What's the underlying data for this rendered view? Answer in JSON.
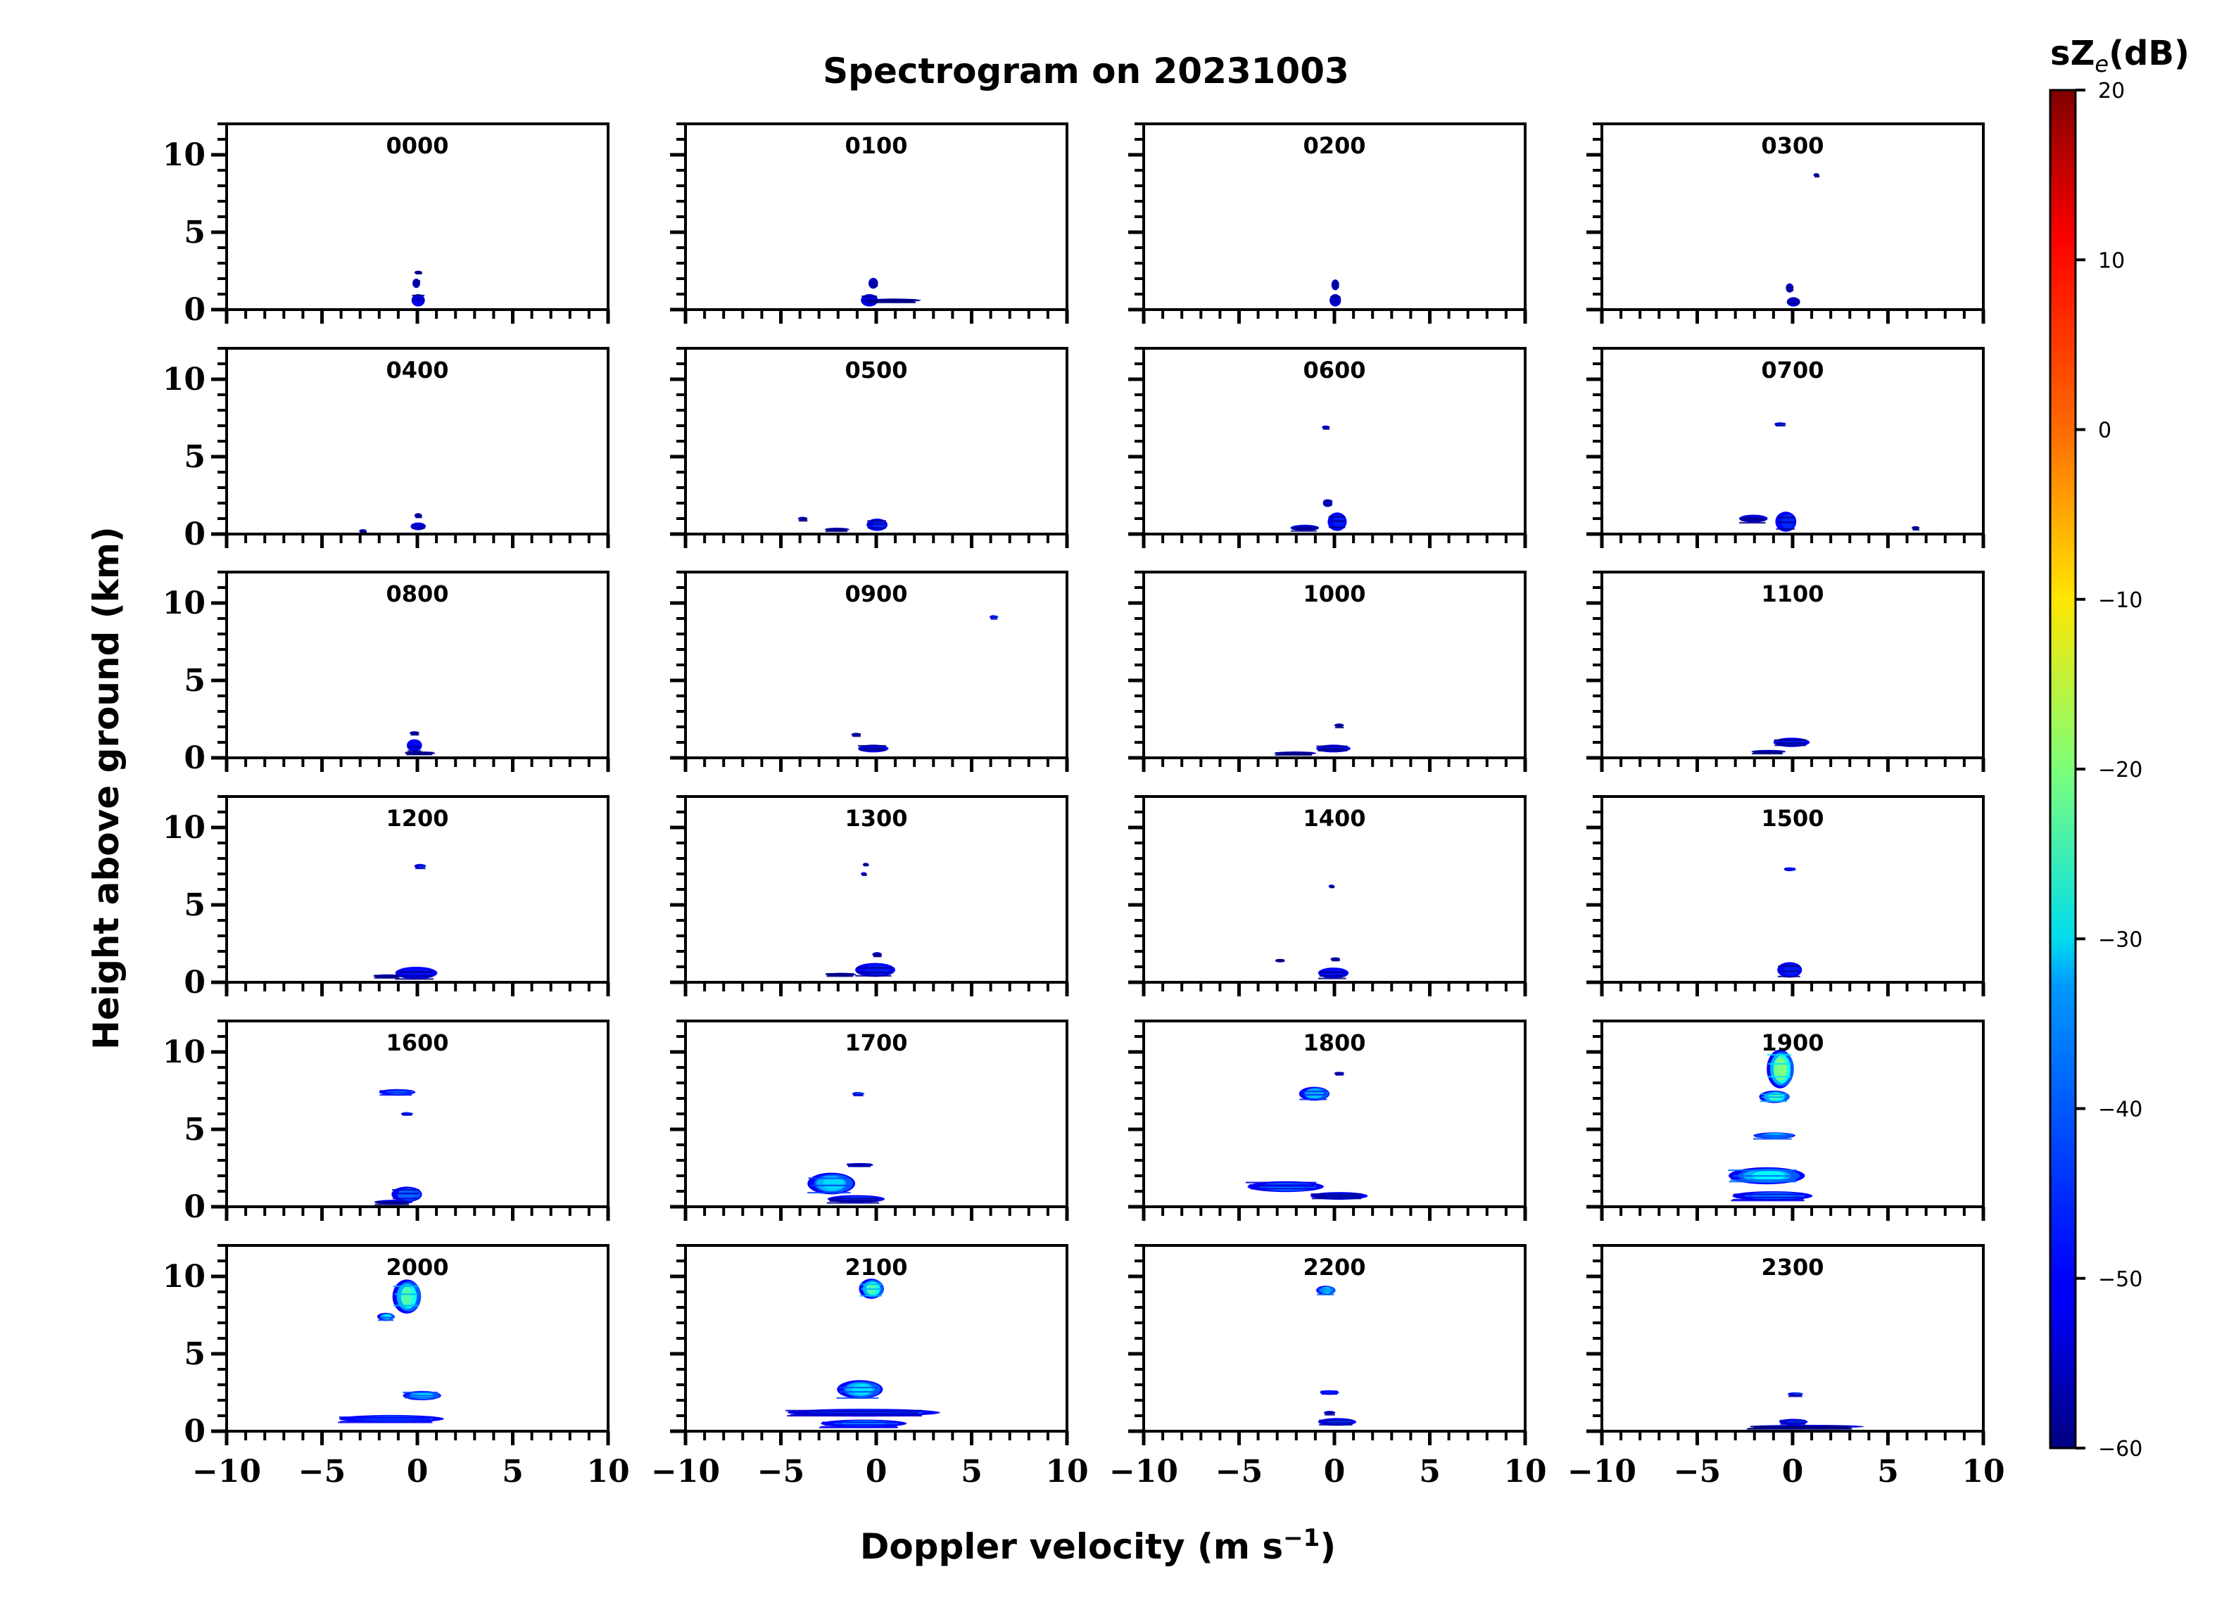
{
  "chart_data": {
    "type": "heatmap",
    "title": "Spectrogram on 20231003",
    "xlabel": "Doppler velocity (m s",
    "xlabel_sup": "−1",
    "xlabel_close": ")",
    "ylabel": "Height above ground (km)",
    "xlim": [
      -10,
      10
    ],
    "ylim": [
      0,
      12
    ],
    "x_ticks": [
      -10,
      -5,
      0,
      5,
      10
    ],
    "x_tick_labels": [
      "−10",
      "−5",
      "0",
      "5",
      "10"
    ],
    "y_ticks": [
      0,
      5,
      10
    ],
    "y_tick_labels": [
      "0",
      "5",
      "10"
    ],
    "colorbar": {
      "label_main": "sZ",
      "label_sub": "e",
      "label_unit": "(dB)",
      "range": [
        -60,
        20
      ],
      "ticks": [
        20,
        10,
        0,
        -10,
        -20,
        -30,
        -40,
        -50,
        -60
      ],
      "tick_labels": [
        "20",
        "10",
        "0",
        "−10",
        "−20",
        "−30",
        "−40",
        "−50",
        "−60"
      ],
      "colormap": "jet"
    },
    "panels": [
      {
        "label": "0000",
        "blobs": [
          {
            "v": 0.1,
            "h": 0.6,
            "w": 0.7,
            "d": 0.8,
            "z": -52
          },
          {
            "v": 0.0,
            "h": 1.7,
            "w": 0.4,
            "d": 0.6,
            "z": -55
          },
          {
            "v": 0.1,
            "h": 2.4,
            "w": 0.4,
            "d": 0.1,
            "z": -57
          }
        ]
      },
      {
        "label": "0100",
        "blobs": [
          {
            "v": -0.3,
            "h": 0.6,
            "w": 0.9,
            "d": 0.8,
            "z": -52
          },
          {
            "v": 1.0,
            "h": 0.6,
            "w": 2.8,
            "d": 0.15,
            "z": -56
          },
          {
            "v": -0.1,
            "h": 1.7,
            "w": 0.5,
            "d": 0.7,
            "z": -55
          }
        ]
      },
      {
        "label": "0200",
        "blobs": [
          {
            "v": 0.1,
            "h": 0.6,
            "w": 0.6,
            "d": 0.8,
            "z": -53
          },
          {
            "v": 0.1,
            "h": 1.6,
            "w": 0.4,
            "d": 0.7,
            "z": -55
          }
        ]
      },
      {
        "label": "0300",
        "blobs": [
          {
            "v": 0.1,
            "h": 0.5,
            "w": 0.7,
            "d": 0.6,
            "z": -53
          },
          {
            "v": -0.1,
            "h": 1.4,
            "w": 0.4,
            "d": 0.6,
            "z": -55
          },
          {
            "v": 1.3,
            "h": 8.7,
            "w": 0.3,
            "d": 0.1,
            "z": -57
          }
        ]
      },
      {
        "label": "0400",
        "blobs": [
          {
            "v": 0.1,
            "h": 0.5,
            "w": 0.8,
            "d": 0.5,
            "z": -50
          },
          {
            "v": 0.1,
            "h": 1.2,
            "w": 0.4,
            "d": 0.3,
            "z": -55
          },
          {
            "v": -2.8,
            "h": 0.2,
            "w": 0.4,
            "d": 0.1,
            "z": -56
          }
        ]
      },
      {
        "label": "0500",
        "blobs": [
          {
            "v": 0.1,
            "h": 0.6,
            "w": 1.1,
            "d": 0.8,
            "z": -47
          },
          {
            "v": -2.0,
            "h": 0.3,
            "w": 1.3,
            "d": 0.2,
            "z": -53
          },
          {
            "v": -3.8,
            "h": 1.0,
            "w": 0.5,
            "d": 0.1,
            "z": -56
          }
        ]
      },
      {
        "label": "0600",
        "blobs": [
          {
            "v": 0.2,
            "h": 0.8,
            "w": 1.0,
            "d": 1.2,
            "z": -48
          },
          {
            "v": -1.5,
            "h": 0.4,
            "w": 1.5,
            "d": 0.4,
            "z": -52
          },
          {
            "v": -0.3,
            "h": 2.0,
            "w": 0.5,
            "d": 0.5,
            "z": -54
          },
          {
            "v": -0.4,
            "h": 6.9,
            "w": 0.4,
            "d": 0.12,
            "z": -50
          }
        ]
      },
      {
        "label": "0700",
        "blobs": [
          {
            "v": -0.3,
            "h": 0.8,
            "w": 1.1,
            "d": 1.3,
            "z": -47
          },
          {
            "v": -2.0,
            "h": 1.0,
            "w": 1.5,
            "d": 0.5,
            "z": -53
          },
          {
            "v": -0.6,
            "h": 7.1,
            "w": 0.6,
            "d": 0.15,
            "z": -45
          },
          {
            "v": 6.5,
            "h": 0.4,
            "w": 0.4,
            "d": 0.1,
            "z": -57
          }
        ]
      },
      {
        "label": "0800",
        "blobs": [
          {
            "v": -0.1,
            "h": 0.8,
            "w": 0.8,
            "d": 0.8,
            "z": -50
          },
          {
            "v": 0.2,
            "h": 0.3,
            "w": 1.6,
            "d": 0.2,
            "z": -54
          },
          {
            "v": -0.1,
            "h": 1.6,
            "w": 0.5,
            "d": 0.2,
            "z": -55
          }
        ]
      },
      {
        "label": "0900",
        "blobs": [
          {
            "v": -0.1,
            "h": 0.6,
            "w": 1.6,
            "d": 0.5,
            "z": -49
          },
          {
            "v": -1.0,
            "h": 1.5,
            "w": 0.5,
            "d": 0.2,
            "z": -55
          },
          {
            "v": 6.2,
            "h": 9.1,
            "w": 0.4,
            "d": 0.12,
            "z": -42
          }
        ]
      },
      {
        "label": "1000",
        "blobs": [
          {
            "v": 0.0,
            "h": 0.6,
            "w": 1.8,
            "d": 0.5,
            "z": -49
          },
          {
            "v": -2.0,
            "h": 0.3,
            "w": 2.2,
            "d": 0.2,
            "z": -53
          },
          {
            "v": 0.3,
            "h": 2.1,
            "w": 0.5,
            "d": 0.15,
            "z": -55
          }
        ]
      },
      {
        "label": "1100",
        "blobs": [
          {
            "v": 0.0,
            "h": 1.0,
            "w": 1.9,
            "d": 0.6,
            "z": -48
          },
          {
            "v": -1.2,
            "h": 0.4,
            "w": 1.8,
            "d": 0.2,
            "z": -53
          }
        ]
      },
      {
        "label": "1200",
        "blobs": [
          {
            "v": 0.2,
            "h": 7.5,
            "w": 0.6,
            "d": 0.3,
            "z": -44
          },
          {
            "v": 0.0,
            "h": 0.6,
            "w": 2.2,
            "d": 0.8,
            "z": -49
          },
          {
            "v": -1.5,
            "h": 0.4,
            "w": 1.5,
            "d": 0.2,
            "z": -53
          }
        ]
      },
      {
        "label": "1300",
        "blobs": [
          {
            "v": 0.0,
            "h": 0.8,
            "w": 2.1,
            "d": 0.9,
            "z": -48
          },
          {
            "v": -1.8,
            "h": 0.5,
            "w": 1.6,
            "d": 0.2,
            "z": -53
          },
          {
            "v": -0.5,
            "h": 7.6,
            "w": 0.3,
            "d": 0.12,
            "z": -52
          },
          {
            "v": -0.6,
            "h": 7.0,
            "w": 0.3,
            "d": 0.12,
            "z": -52
          },
          {
            "v": 0.1,
            "h": 1.8,
            "w": 0.5,
            "d": 0.3,
            "z": -55
          }
        ]
      },
      {
        "label": "1400",
        "blobs": [
          {
            "v": 0.0,
            "h": 0.6,
            "w": 1.6,
            "d": 0.7,
            "z": -49
          },
          {
            "v": -2.8,
            "h": 1.4,
            "w": 0.5,
            "d": 0.12,
            "z": -55
          },
          {
            "v": -0.1,
            "h": 6.2,
            "w": 0.3,
            "d": 0.1,
            "z": -50
          },
          {
            "v": 0.1,
            "h": 1.5,
            "w": 0.5,
            "d": 0.2,
            "z": -55
          }
        ]
      },
      {
        "label": "1500",
        "blobs": [
          {
            "v": -0.1,
            "h": 7.3,
            "w": 0.6,
            "d": 0.25,
            "z": -40
          },
          {
            "v": -0.1,
            "h": 0.8,
            "w": 1.3,
            "d": 1.0,
            "z": -48
          }
        ]
      },
      {
        "label": "1600",
        "blobs": [
          {
            "v": -1.0,
            "h": 7.4,
            "w": 1.9,
            "d": 0.4,
            "z": -37
          },
          {
            "v": -0.5,
            "h": 6.0,
            "w": 0.6,
            "d": 0.2,
            "z": -42
          },
          {
            "v": -0.5,
            "h": 0.8,
            "w": 1.6,
            "d": 1.0,
            "z": -42
          },
          {
            "v": -1.2,
            "h": 0.3,
            "w": 2.0,
            "d": 0.3,
            "z": -50
          }
        ]
      },
      {
        "label": "1700",
        "blobs": [
          {
            "v": -2.3,
            "h": 1.5,
            "w": 2.5,
            "d": 1.4,
            "z": -33
          },
          {
            "v": -0.8,
            "h": 2.7,
            "w": 1.4,
            "d": 0.25,
            "z": -45
          },
          {
            "v": -0.9,
            "h": 7.3,
            "w": 0.6,
            "d": 0.2,
            "z": -42
          },
          {
            "v": -1.0,
            "h": 0.5,
            "w": 3.0,
            "d": 0.5,
            "z": -46
          }
        ]
      },
      {
        "label": "1800",
        "blobs": [
          {
            "v": -2.5,
            "h": 1.3,
            "w": 4.0,
            "d": 0.7,
            "z": -40
          },
          {
            "v": 0.3,
            "h": 0.7,
            "w": 3.0,
            "d": 0.5,
            "z": -46
          },
          {
            "v": -1.0,
            "h": 7.3,
            "w": 1.6,
            "d": 0.9,
            "z": -35
          },
          {
            "v": 0.3,
            "h": 8.6,
            "w": 0.5,
            "d": 0.2,
            "z": -48
          }
        ]
      },
      {
        "label": "1900",
        "blobs": [
          {
            "v": -0.6,
            "h": 8.9,
            "w": 1.4,
            "d": 2.5,
            "z": -20
          },
          {
            "v": -0.9,
            "h": 7.1,
            "w": 1.6,
            "d": 0.8,
            "z": -25
          },
          {
            "v": -0.9,
            "h": 4.6,
            "w": 2.2,
            "d": 0.4,
            "z": -32
          },
          {
            "v": -1.3,
            "h": 2.0,
            "w": 4.0,
            "d": 1.1,
            "z": -30
          },
          {
            "v": -1.0,
            "h": 0.7,
            "w": 4.2,
            "d": 0.6,
            "z": -40
          }
        ]
      },
      {
        "label": "2000",
        "blobs": [
          {
            "v": -0.5,
            "h": 8.7,
            "w": 1.5,
            "d": 2.2,
            "z": -24
          },
          {
            "v": -1.6,
            "h": 7.4,
            "w": 0.9,
            "d": 0.5,
            "z": -32
          },
          {
            "v": 0.3,
            "h": 2.3,
            "w": 2.0,
            "d": 0.6,
            "z": -32
          },
          {
            "v": -1.3,
            "h": 0.8,
            "w": 5.5,
            "d": 0.5,
            "z": -38
          }
        ]
      },
      {
        "label": "2100",
        "blobs": [
          {
            "v": -0.2,
            "h": 9.2,
            "w": 1.3,
            "d": 1.3,
            "z": -24
          },
          {
            "v": -0.8,
            "h": 2.7,
            "w": 2.4,
            "d": 1.2,
            "z": -32
          },
          {
            "v": -0.6,
            "h": 1.2,
            "w": 8.0,
            "d": 0.5,
            "z": -42
          },
          {
            "v": -0.6,
            "h": 0.5,
            "w": 4.5,
            "d": 0.5,
            "z": -38
          }
        ]
      },
      {
        "label": "2200",
        "blobs": [
          {
            "v": -0.4,
            "h": 9.1,
            "w": 1.0,
            "d": 0.6,
            "z": -30
          },
          {
            "v": -0.2,
            "h": 2.5,
            "w": 1.0,
            "d": 0.3,
            "z": -38
          },
          {
            "v": 0.2,
            "h": 0.6,
            "w": 2.0,
            "d": 0.5,
            "z": -45
          },
          {
            "v": -0.2,
            "h": 1.2,
            "w": 0.6,
            "d": 0.2,
            "z": -50
          }
        ]
      },
      {
        "label": "2300",
        "blobs": [
          {
            "v": 0.2,
            "h": 2.4,
            "w": 0.8,
            "d": 0.12,
            "z": -45
          },
          {
            "v": 0.1,
            "h": 0.6,
            "w": 1.5,
            "d": 0.4,
            "z": -43
          },
          {
            "v": 0.8,
            "h": 0.3,
            "w": 6.0,
            "d": 0.1,
            "z": -52
          }
        ]
      }
    ]
  }
}
